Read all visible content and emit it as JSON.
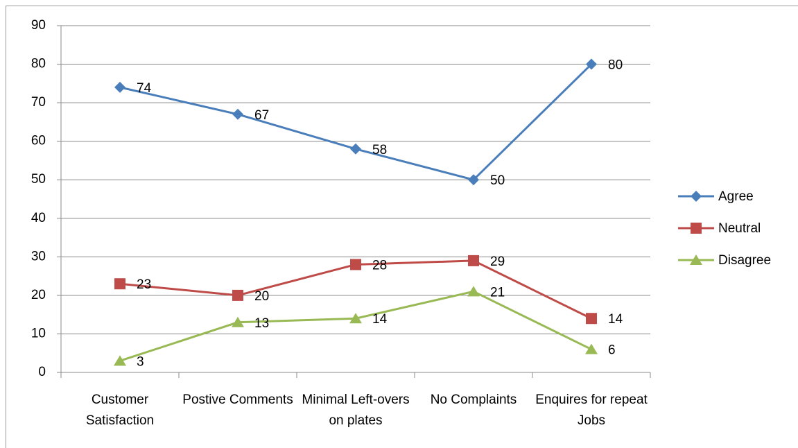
{
  "chart_data": {
    "type": "line",
    "categories": [
      "Customer Satisfaction",
      "Postive Comments",
      "Minimal Left-overs on plates",
      "No Complaints",
      "Enquires for repeat Jobs"
    ],
    "series": [
      {
        "name": "Agree",
        "color": "#4a7ebb",
        "marker": "diamond",
        "values": [
          74,
          67,
          58,
          50,
          80
        ]
      },
      {
        "name": "Neutral",
        "color": "#be4b48",
        "marker": "square",
        "values": [
          23,
          20,
          28,
          29,
          14
        ]
      },
      {
        "name": "Disagree",
        "color": "#98b954",
        "marker": "triangle",
        "values": [
          3,
          13,
          14,
          21,
          6
        ]
      }
    ],
    "ylim": [
      0,
      90
    ],
    "yticks": [
      0,
      10,
      20,
      30,
      40,
      50,
      60,
      70,
      80,
      90
    ],
    "grid": true,
    "legend": "right"
  }
}
